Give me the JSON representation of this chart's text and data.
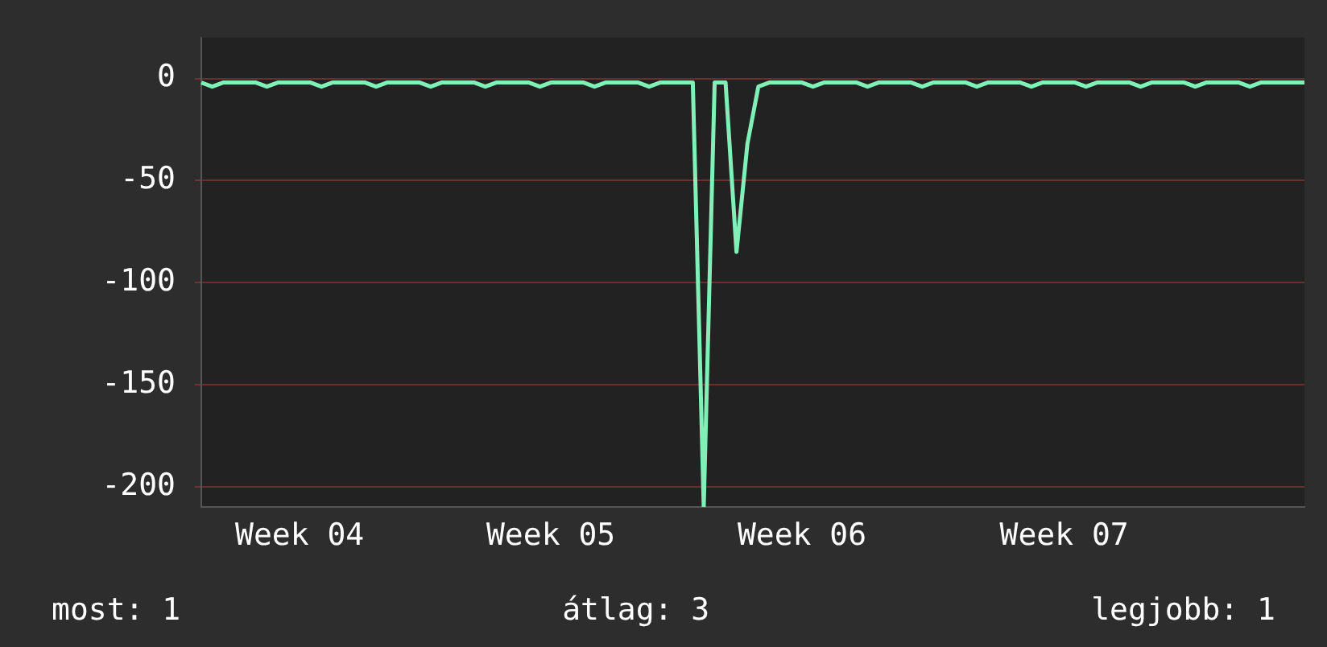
{
  "chart_data": {
    "type": "line",
    "categories": [
      null,
      null,
      null,
      null,
      null,
      null,
      null,
      null,
      null,
      "Week 04",
      null,
      null,
      null,
      null,
      null,
      null,
      null,
      null,
      null,
      null,
      null,
      null,
      null,
      null,
      null,
      null,
      null,
      null,
      null,
      null,
      null,
      null,
      "Week 05",
      null,
      null,
      null,
      null,
      null,
      null,
      null,
      null,
      null,
      null,
      null,
      null,
      null,
      null,
      null,
      null,
      null,
      null,
      null,
      null,
      null,
      null,
      "Week 06",
      null,
      null,
      null,
      null,
      null,
      null,
      null,
      null,
      null,
      null,
      null,
      null,
      null,
      null,
      null,
      null,
      null,
      null,
      null,
      null,
      null,
      null,
      null,
      "Week 07",
      null,
      null,
      null,
      null,
      null,
      null,
      null,
      null,
      null,
      null,
      null,
      null,
      null,
      null,
      null,
      null,
      null,
      null,
      null,
      null,
      null,
      null
    ],
    "series": [
      {
        "color": "#80f0b8",
        "values": [
          -2,
          -4,
          -2,
          -2,
          -2,
          -2,
          -4,
          -2,
          -2,
          -2,
          -2,
          -4,
          -2,
          -2,
          -2,
          -2,
          -4,
          -2,
          -2,
          -2,
          -2,
          -4,
          -2,
          -2,
          -2,
          -2,
          -4,
          -2,
          -2,
          -2,
          -2,
          -4,
          -2,
          -2,
          -2,
          -2,
          -4,
          -2,
          -2,
          -2,
          -2,
          -4,
          -2,
          -2,
          -2,
          -2,
          -210,
          -2,
          -2,
          -85,
          -32,
          -4,
          -2,
          -2,
          -2,
          -2,
          -4,
          -2,
          -2,
          -2,
          -2,
          -4,
          -2,
          -2,
          -2,
          -2,
          -4,
          -2,
          -2,
          -2,
          -2,
          -4,
          -2,
          -2,
          -2,
          -2,
          -4,
          -2,
          -2,
          -2,
          -2,
          -4,
          -2,
          -2,
          -2,
          -2,
          -4,
          -2,
          -2,
          -2,
          -2,
          -4,
          -2,
          -2,
          -2,
          -2,
          -4,
          -2,
          -2,
          -2,
          -2,
          -2
        ]
      }
    ],
    "ylim": [
      -210,
      20
    ],
    "yticks": [
      0,
      -50,
      -100,
      -150,
      -200
    ],
    "grid": "y",
    "legend": false,
    "marker": "none",
    "line_style": "solid",
    "annotations": [
      "most: 1",
      "átlag: 3",
      "legjobb: 1"
    ]
  }
}
